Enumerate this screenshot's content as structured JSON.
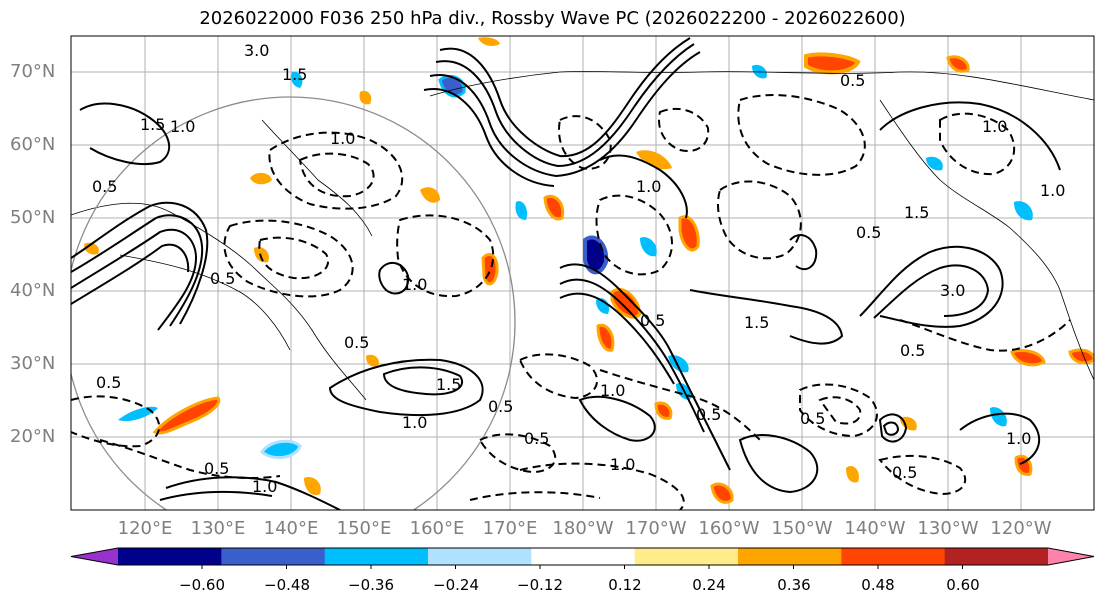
{
  "title": "2026022000 F036 250 hPa div., Rossby Wave PC (2026022200 - 2026022600)",
  "lat_labels": [
    "70°N",
    "60°N",
    "50°N",
    "40°N",
    "30°N",
    "20°N"
  ],
  "lon_labels": [
    "120°E",
    "130°E",
    "140°E",
    "150°E",
    "160°E",
    "170°E",
    "180°W",
    "170°W",
    "160°W",
    "150°W",
    "140°W",
    "130°W",
    "120°W"
  ],
  "colorbar": {
    "ticks": [
      "−0.60",
      "−0.48",
      "−0.36",
      "−0.24",
      "−0.12",
      "0.12",
      "0.24",
      "0.36",
      "0.48",
      "0.60"
    ],
    "colors": [
      "#9932cc",
      "#00008b",
      "#3a5fcd",
      "#00bfff",
      "#b0e2ff",
      "#ffffff",
      "#ffec8b",
      "#ffa500",
      "#ff4500",
      "#b22222",
      "#ff82ab"
    ]
  },
  "contour_labels": [
    "3.0",
    "1.5",
    "1.0",
    "0.5",
    "0.5",
    "1.0",
    "1.5",
    "1.0",
    "0.5",
    "1.0",
    "0.5",
    "0.5",
    "1.5",
    "0.5",
    "1.0",
    "0.5",
    "1.0",
    "0.5",
    "0.5",
    "1.5",
    "1.0",
    "3.0",
    "1.5",
    "1.0",
    "0.5",
    "1.0",
    "0.5",
    "0.5",
    "1.0",
    "0.5",
    "0.5",
    "1.0"
  ]
}
